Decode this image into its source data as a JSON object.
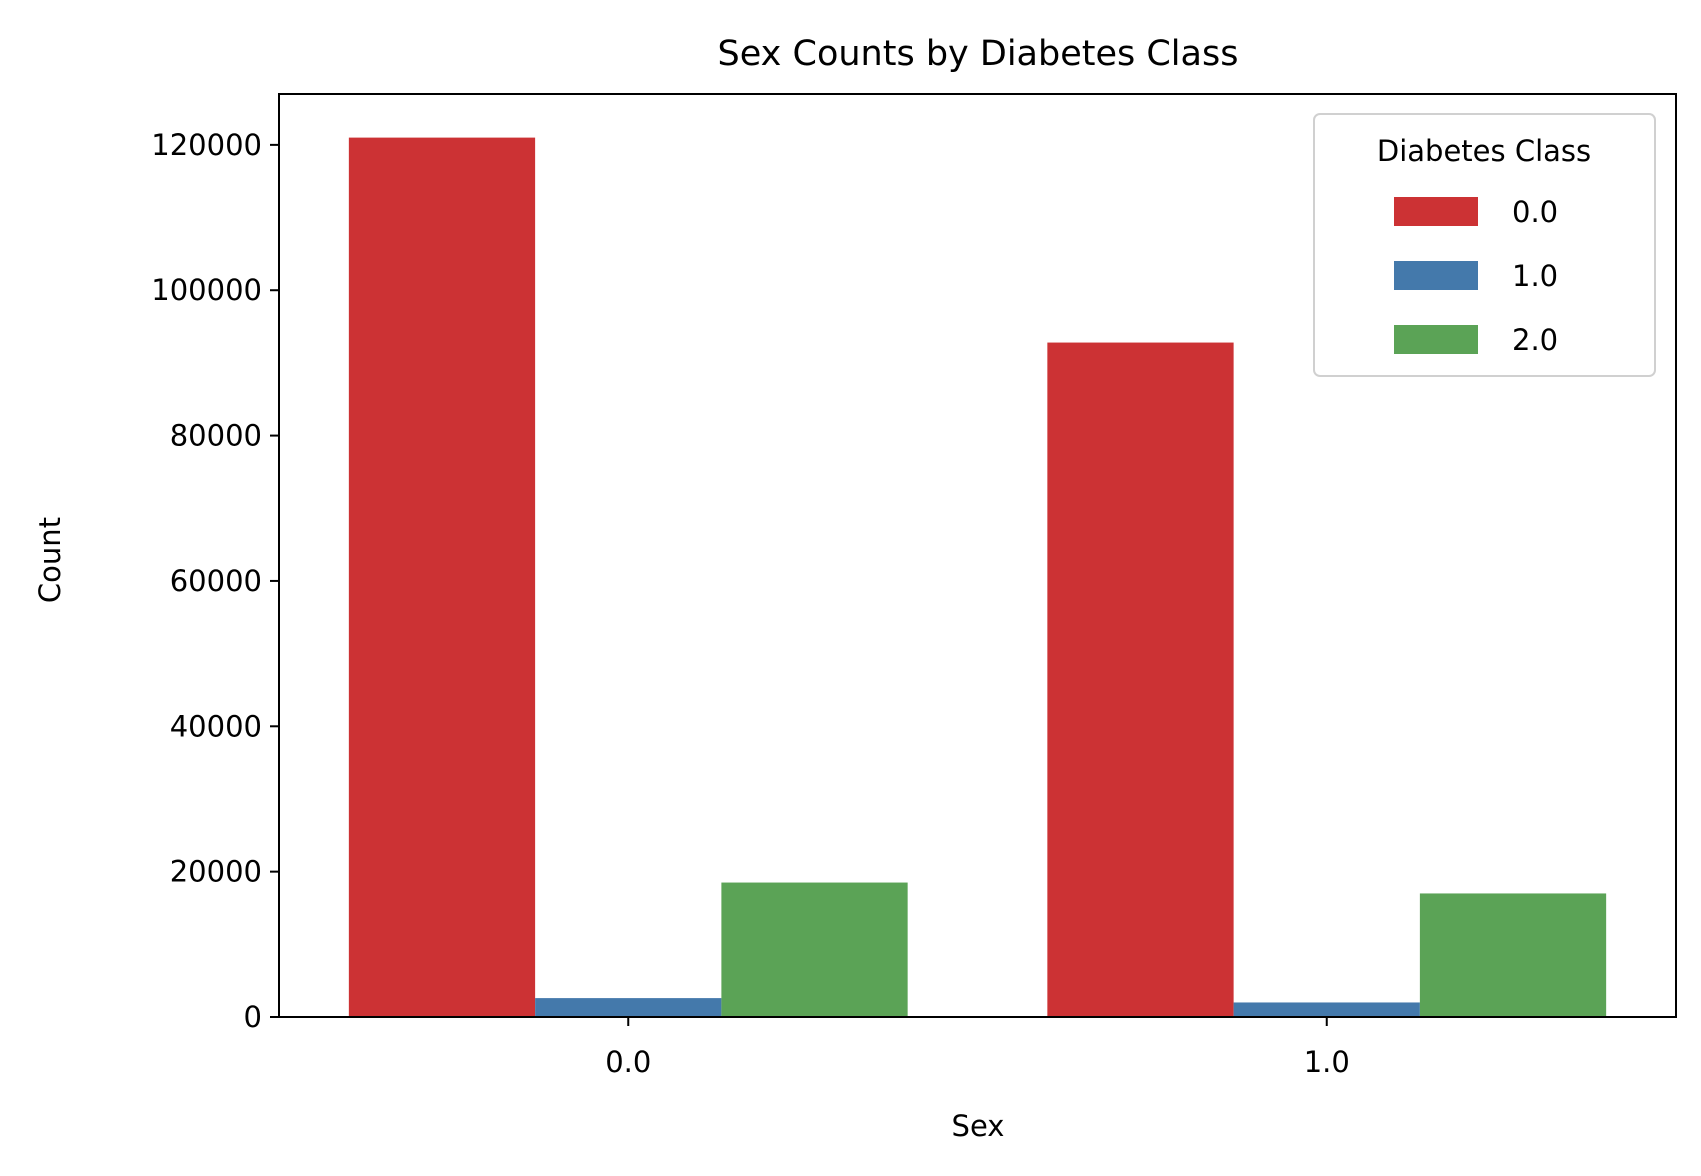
{
  "chart_data": {
    "type": "bar",
    "title": "Sex Counts by Diabetes Class",
    "xlabel": "Sex",
    "ylabel": "Count",
    "categories": [
      "0.0",
      "1.0"
    ],
    "ylim": [
      0,
      127000
    ],
    "yticks": [
      0,
      20000,
      40000,
      60000,
      80000,
      100000,
      120000
    ],
    "ytick_labels": [
      "0",
      "20000",
      "40000",
      "60000",
      "80000",
      "100000",
      "120000"
    ],
    "grid": false,
    "legend": {
      "title": "Diabetes Class",
      "placement": "top-right"
    },
    "series": [
      {
        "name": "0.0",
        "color": "#cc3234",
        "values": [
          121000,
          92800
        ]
      },
      {
        "name": "1.0",
        "color": "#4479ab",
        "values": [
          2600,
          2000
        ]
      },
      {
        "name": "2.0",
        "color": "#5ba356",
        "values": [
          18500,
          17000
        ]
      }
    ]
  }
}
